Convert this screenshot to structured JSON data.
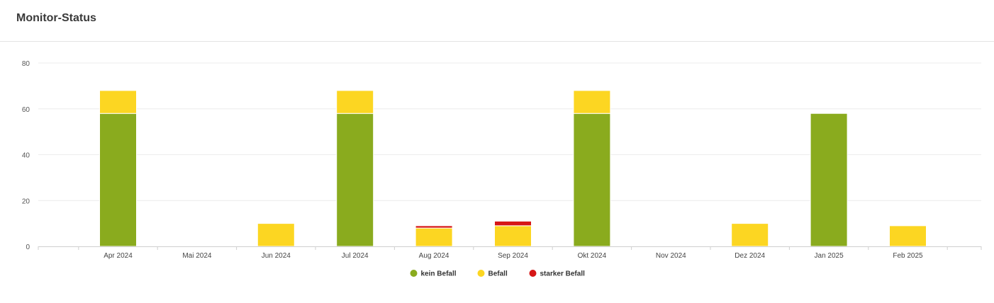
{
  "header": {
    "title": "Monitor-Status"
  },
  "chart_data": {
    "type": "bar",
    "stacked": true,
    "categories": [
      "Apr 2024",
      "Mai 2024",
      "Jun 2024",
      "Jul 2024",
      "Aug 2024",
      "Sep 2024",
      "Okt 2024",
      "Nov 2024",
      "Dez 2024",
      "Jan 2025",
      "Feb 2025"
    ],
    "series": [
      {
        "name": "kein Befall",
        "color": "#8aab1e",
        "values": [
          58,
          0,
          0,
          58,
          0,
          0,
          58,
          0,
          0,
          58,
          0
        ]
      },
      {
        "name": "Befall",
        "color": "#fcd622",
        "values": [
          10,
          0,
          10,
          10,
          8,
          9,
          10,
          0,
          10,
          0,
          9
        ]
      },
      {
        "name": "starker Befall",
        "color": "#d61616",
        "values": [
          0,
          0,
          0,
          0,
          1,
          2,
          0,
          0,
          0,
          0,
          0
        ]
      }
    ],
    "ylim": [
      0,
      80
    ],
    "yticks": [
      0,
      20,
      40,
      60,
      80
    ],
    "grid": true,
    "legend_position": "bottom-center"
  }
}
